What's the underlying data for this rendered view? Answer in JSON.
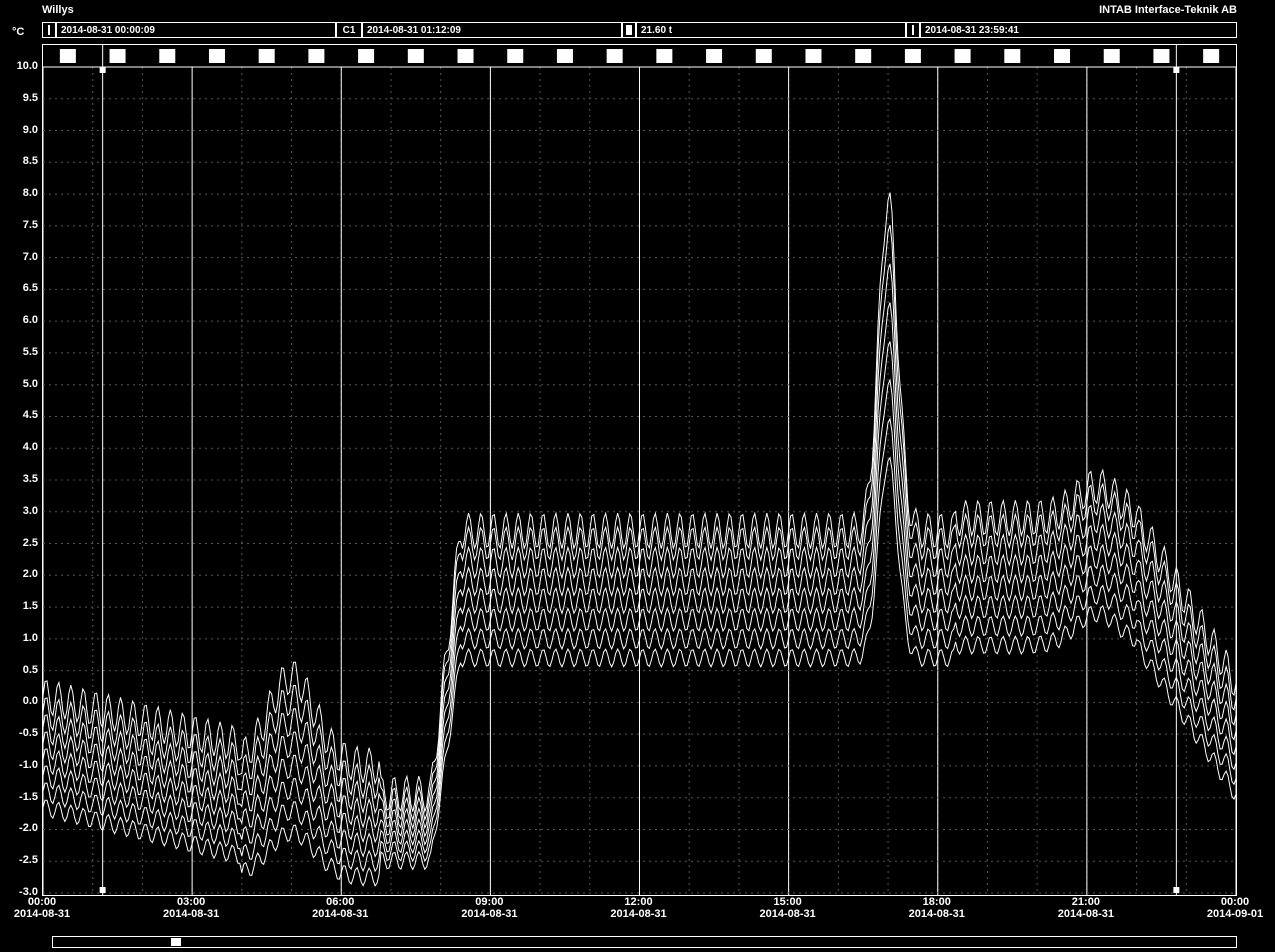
{
  "header": {
    "title_left": "Willys",
    "title_right": "INTAB Interface-Teknik AB",
    "y_axis_label": "°C"
  },
  "toolbar": {
    "field1_label": "",
    "field1_value": "2014-08-31 00:00:09",
    "field2_label": "C1",
    "field2_value": "2014-08-31 01:12:09",
    "field3_label": "",
    "field3_value": "21.60 t",
    "field4_label": "",
    "field4_value": "2014-08-31 23:59:41"
  },
  "chart": {
    "type": "line",
    "background_color": "#000000",
    "axis_color": "#ffffff",
    "grid_major_color": "#ffffff",
    "grid_minor_color": "#555555",
    "line_color": "#ffffff",
    "line_width": 1,
    "ylim": [
      -3.0,
      10.0
    ],
    "ytick_step": 0.5,
    "yticks": [
      "-3.0",
      "-2.5",
      "-2.0",
      "-1.5",
      "-1.0",
      "-0.5",
      "0.0",
      "0.5",
      "1.0",
      "1.5",
      "2.0",
      "2.5",
      "3.0",
      "3.5",
      "4.0",
      "4.5",
      "5.0",
      "5.5",
      "6.0",
      "6.5",
      "7.0",
      "7.5",
      "8.0",
      "8.5",
      "9.0",
      "9.5",
      "10.0"
    ],
    "xlim_hours": [
      0,
      24
    ],
    "x_major_step_hours": 3,
    "x_minor_step_hours": 1,
    "xticks": [
      {
        "time": "00:00",
        "date": "2014-08-31"
      },
      {
        "time": "03:00",
        "date": "2014-08-31"
      },
      {
        "time": "06:00",
        "date": "2014-08-31"
      },
      {
        "time": "09:00",
        "date": "2014-08-31"
      },
      {
        "time": "12:00",
        "date": "2014-08-31"
      },
      {
        "time": "15:00",
        "date": "2014-08-31"
      },
      {
        "time": "18:00",
        "date": "2014-08-31"
      },
      {
        "time": "21:00",
        "date": "2014-08-31"
      },
      {
        "time": "00:00",
        "date": "2014-09-01"
      }
    ],
    "cursor1_hour": 1.2,
    "cursor2_hour": 22.8,
    "top_markers_count": 24,
    "series": [
      {
        "offset": 0.6,
        "peak1_amp": 1.4,
        "peak2_amp": 5.2,
        "plateau": 2.7,
        "osc_amp": 0.28
      },
      {
        "offset": 0.35,
        "peak1_amp": 1.3,
        "peak2_amp": 4.9,
        "plateau": 2.5,
        "osc_amp": 0.26
      },
      {
        "offset": 0.1,
        "peak1_amp": 1.2,
        "peak2_amp": 4.6,
        "plateau": 2.2,
        "osc_amp": 0.24
      },
      {
        "offset": -0.15,
        "peak1_amp": 1.1,
        "peak2_amp": 4.3,
        "plateau": 1.9,
        "osc_amp": 0.22
      },
      {
        "offset": -0.4,
        "peak1_amp": 1.0,
        "peak2_amp": 4.0,
        "plateau": 1.6,
        "osc_amp": 0.2
      },
      {
        "offset": -0.65,
        "peak1_amp": 0.9,
        "peak2_amp": 3.7,
        "plateau": 1.3,
        "osc_amp": 0.18
      },
      {
        "offset": -0.9,
        "peak1_amp": 0.8,
        "peak2_amp": 3.4,
        "plateau": 1.0,
        "osc_amp": 0.16
      },
      {
        "offset": -1.15,
        "peak1_amp": 0.7,
        "peak2_amp": 3.1,
        "plateau": 0.7,
        "osc_amp": 0.14
      }
    ],
    "shape": {
      "start_base": -0.5,
      "dip_to": -1.6,
      "peak1_center_h": 5.0,
      "peak1_width_h": 1.2,
      "trough_after_peak1": -1.8,
      "rise_start_h": 7.8,
      "rise_end_h": 8.4,
      "plateau_end_h": 16.2,
      "peak2_center_h": 17.0,
      "peak2_width_h": 0.6,
      "post_peak2_level": 2.6,
      "bump_center_h": 21.2,
      "bump_amp": 0.5,
      "fall_start_h": 22.0,
      "end_base": -0.3,
      "osc_freq_per_hour": 4.0
    }
  },
  "scrollbar": {
    "thumb_position_pct": 10
  }
}
